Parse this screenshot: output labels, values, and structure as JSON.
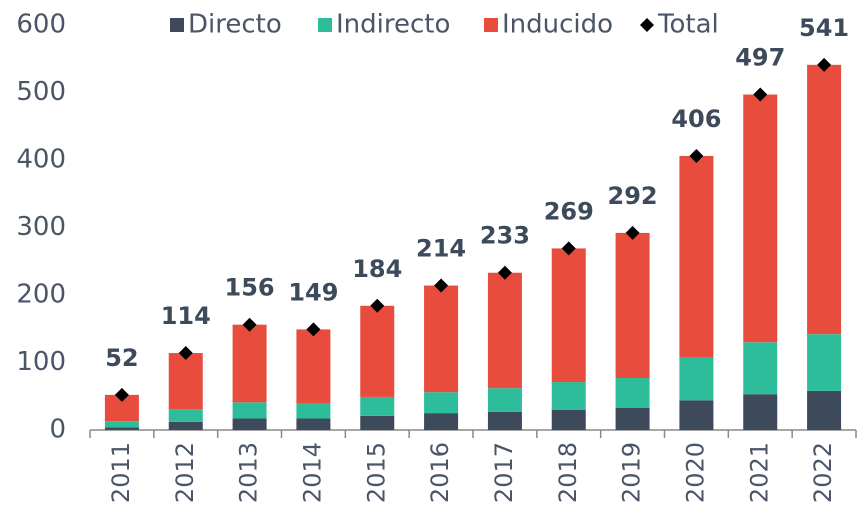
{
  "chart_data": {
    "type": "stacked_bar",
    "categories": [
      "2011",
      "2012",
      "2013",
      "2014",
      "2015",
      "2016",
      "2017",
      "2018",
      "2019",
      "2020",
      "2021",
      "2022"
    ],
    "series": [
      {
        "name": "Directo",
        "color": "#3d4a5c",
        "values": [
          4,
          12,
          17,
          17,
          21,
          25,
          27,
          30,
          33,
          44,
          53,
          58
        ]
      },
      {
        "name": "Indirecto",
        "color": "#2ebd9a",
        "values": [
          9,
          19,
          24,
          23,
          28,
          31,
          35,
          41,
          44,
          63,
          77,
          84
        ]
      },
      {
        "name": "Inducido",
        "color": "#e84c3d",
        "values": [
          39,
          83,
          115,
          109,
          135,
          158,
          171,
          198,
          215,
          299,
          367,
          399
        ]
      },
      {
        "name": "Total",
        "color": "#000000",
        "values": [
          52,
          114,
          156,
          149,
          184,
          214,
          233,
          269,
          292,
          406,
          497,
          541
        ]
      }
    ],
    "ylim": [
      0,
      600
    ],
    "yticks": [
      0,
      100,
      200,
      300,
      400,
      500,
      600
    ],
    "grid": false
  }
}
